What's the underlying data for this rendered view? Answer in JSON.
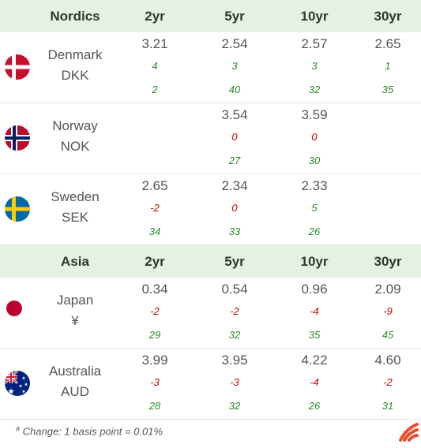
{
  "sections": [
    {
      "title": "Nordics",
      "tenors": [
        "2yr",
        "5yr",
        "10yr",
        "30yr"
      ],
      "countries": [
        {
          "name": "Denmark",
          "currency": "DKK",
          "flag_icon": "denmark-flag-icon",
          "yields": [
            "3.21",
            "2.54",
            "2.57",
            "2.65"
          ],
          "changes": [
            "4",
            "3",
            "3",
            "1"
          ],
          "second": [
            "2",
            "40",
            "32",
            "35"
          ]
        },
        {
          "name": "Norway",
          "currency": "NOK",
          "flag_icon": "norway-flag-icon",
          "yields": [
            "",
            "3.54",
            "3.59",
            ""
          ],
          "changes": [
            "",
            "0",
            "0",
            ""
          ],
          "second": [
            "",
            "27",
            "30",
            ""
          ]
        },
        {
          "name": "Sweden",
          "currency": "SEK",
          "flag_icon": "sweden-flag-icon",
          "yields": [
            "2.65",
            "2.34",
            "2.33",
            ""
          ],
          "changes": [
            "-2",
            "0",
            "5",
            ""
          ],
          "second": [
            "34",
            "33",
            "26",
            ""
          ]
        }
      ]
    },
    {
      "title": "Asia",
      "tenors": [
        "2yr",
        "5yr",
        "10yr",
        "30yr"
      ],
      "countries": [
        {
          "name": "Japan",
          "currency": "¥",
          "flag_icon": "japan-flag-icon",
          "yields": [
            "0.34",
            "0.54",
            "0.96",
            "2.09"
          ],
          "changes": [
            "-2",
            "-2",
            "-4",
            "-9"
          ],
          "second": [
            "29",
            "32",
            "35",
            "45"
          ]
        },
        {
          "name": "Australia",
          "currency": "AUD",
          "flag_icon": "australia-flag-icon",
          "yields": [
            "3.99",
            "3.95",
            "4.22",
            "4.60"
          ],
          "changes": [
            "-3",
            "-3",
            "-4",
            "-2"
          ],
          "second": [
            "28",
            "32",
            "26",
            "31"
          ]
        }
      ]
    }
  ],
  "footnote": {
    "marker": "a",
    "text": "Change: 1 basis point = 0.01%"
  },
  "colors": {
    "header_bg": "#e6f0e3",
    "negative": "#cc0000",
    "positive": "#2a8a2a",
    "logo": "#e8502a"
  }
}
